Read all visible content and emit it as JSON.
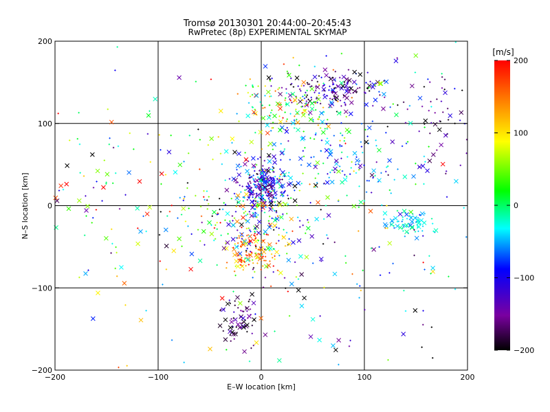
{
  "chart_data": {
    "type": "scatter",
    "title": "Tromsø 20130301 20:44:00–20:45:43",
    "subtitle": "RwPretec (8p) EXPERIMENTAL SKYMAP",
    "xlabel": "E–W location [km]",
    "ylabel": "N–S location [km]",
    "xlim": [
      -200,
      200
    ],
    "ylim": [
      -200,
      200
    ],
    "xticks": [
      -200,
      -100,
      0,
      100,
      200
    ],
    "yticks": [
      -200,
      -100,
      0,
      100,
      200
    ],
    "xtick_labels": [
      "−200",
      "−100",
      "0",
      "100",
      "200"
    ],
    "ytick_labels": [
      "−200",
      "−100",
      "0",
      "100",
      "200"
    ],
    "grid": true,
    "markers": "x (large) and + (small)",
    "colorbar": {
      "label": "[m/s]",
      "range": [
        -200,
        200
      ],
      "ticks": [
        200,
        100,
        0,
        -100,
        -200
      ],
      "tick_labels": [
        "200",
        "100",
        "0",
        "−100",
        "−200"
      ],
      "colors": [
        "#000000",
        "#7a00a0",
        "#0000ff",
        "#00ffff",
        "#00ff00",
        "#ffff00",
        "#ff8000",
        "#ff0000"
      ]
    },
    "clusters": [
      {
        "x": 2,
        "y": 25,
        "sx": 12,
        "sy": 15,
        "n": 260,
        "vmean": -110,
        "vsd": 50
      },
      {
        "x": -8,
        "y": -60,
        "sx": 12,
        "sy": 12,
        "n": 90,
        "vmean": 150,
        "vsd": 40
      },
      {
        "x": -20,
        "y": -140,
        "sx": 10,
        "sy": 15,
        "n": 70,
        "vmean": -170,
        "vsd": 30
      },
      {
        "x": 70,
        "y": 140,
        "sx": 25,
        "sy": 12,
        "n": 160,
        "vmean": -150,
        "vsd": 45
      },
      {
        "x": 30,
        "y": 120,
        "sx": 30,
        "sy": 20,
        "n": 140,
        "vmean": 60,
        "vsd": 70
      },
      {
        "x": 145,
        "y": -20,
        "sx": 12,
        "sy": 7,
        "n": 70,
        "vmean": -40,
        "vsd": 20
      },
      {
        "x": 80,
        "y": 60,
        "sx": 40,
        "sy": 25,
        "n": 110,
        "vmean": -60,
        "vsd": 50
      },
      {
        "x": -10,
        "y": -20,
        "sx": 25,
        "sy": 25,
        "n": 180,
        "vmean": 20,
        "vsd": 110
      },
      {
        "x": 80,
        "y": 0,
        "sx": 70,
        "sy": 80,
        "n": 200,
        "vmean": -60,
        "vsd": 90
      },
      {
        "x": -60,
        "y": 0,
        "sx": 40,
        "sy": 40,
        "n": 70,
        "vmean": 20,
        "vsd": 110
      },
      {
        "x": 170,
        "y": 110,
        "sx": 25,
        "sy": 25,
        "n": 50,
        "vmean": -150,
        "vsd": 60
      },
      {
        "x": -170,
        "y": 20,
        "sx": 25,
        "sy": 60,
        "n": 50,
        "vmean": 0,
        "vsd": 110
      },
      {
        "x": 0,
        "y": 0,
        "sx": 120,
        "sy": 110,
        "n": 160,
        "vmean": 0,
        "vsd": 130
      }
    ]
  }
}
